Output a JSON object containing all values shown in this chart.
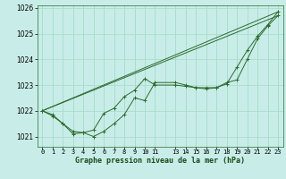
{
  "xlabel": "Graphe pression niveau de la mer (hPa)",
  "bg_color": "#c8ede8",
  "grid_color": "#aaddcc",
  "line_color": "#2d6a2d",
  "marker_color": "#2d6a2d",
  "ylim": [
    1020.6,
    1026.1
  ],
  "xlim": [
    -0.5,
    23.5
  ],
  "yticks": [
    1021,
    1022,
    1023,
    1024,
    1025,
    1026
  ],
  "x_ticks": [
    0,
    1,
    2,
    3,
    4,
    5,
    6,
    7,
    8,
    9,
    10,
    11,
    13,
    14,
    15,
    16,
    17,
    18,
    19,
    20,
    21,
    22,
    23
  ],
  "x_labels": [
    "0",
    "1",
    "2",
    "3",
    "4",
    "5",
    "6",
    "7",
    "8",
    "9",
    "10",
    "11",
    "13",
    "14",
    "15",
    "16",
    "17",
    "18",
    "19",
    "20",
    "21",
    "22",
    "23"
  ],
  "series_lines": [
    {
      "x": [
        0,
        23
      ],
      "y": [
        1022.0,
        1025.85
      ]
    },
    {
      "x": [
        0,
        23
      ],
      "y": [
        1022.0,
        1025.7
      ]
    }
  ],
  "series_data": [
    {
      "x": [
        0,
        1,
        2,
        3,
        4,
        5,
        6,
        7,
        8,
        9,
        10,
        11,
        13,
        14,
        15,
        16,
        17,
        18,
        19,
        20,
        21,
        22,
        23
      ],
      "y": [
        1022.0,
        1021.8,
        1021.5,
        1021.2,
        1021.15,
        1021.0,
        1021.2,
        1021.5,
        1021.85,
        1022.5,
        1022.4,
        1023.1,
        1023.1,
        1023.0,
        1022.9,
        1022.9,
        1022.9,
        1023.1,
        1023.2,
        1024.0,
        1024.8,
        1025.3,
        1025.7
      ]
    },
    {
      "x": [
        0,
        1,
        2,
        3,
        4,
        5,
        6,
        7,
        8,
        9,
        10,
        11,
        13,
        14,
        15,
        16,
        17,
        18,
        19,
        20,
        21,
        22,
        23
      ],
      "y": [
        1022.0,
        1021.85,
        1021.5,
        1021.1,
        1021.15,
        1021.25,
        1021.9,
        1022.1,
        1022.55,
        1022.8,
        1023.25,
        1023.0,
        1023.0,
        1022.95,
        1022.9,
        1022.85,
        1022.9,
        1023.05,
        1023.7,
        1024.35,
        1024.9,
        1025.35,
        1025.85
      ]
    }
  ]
}
